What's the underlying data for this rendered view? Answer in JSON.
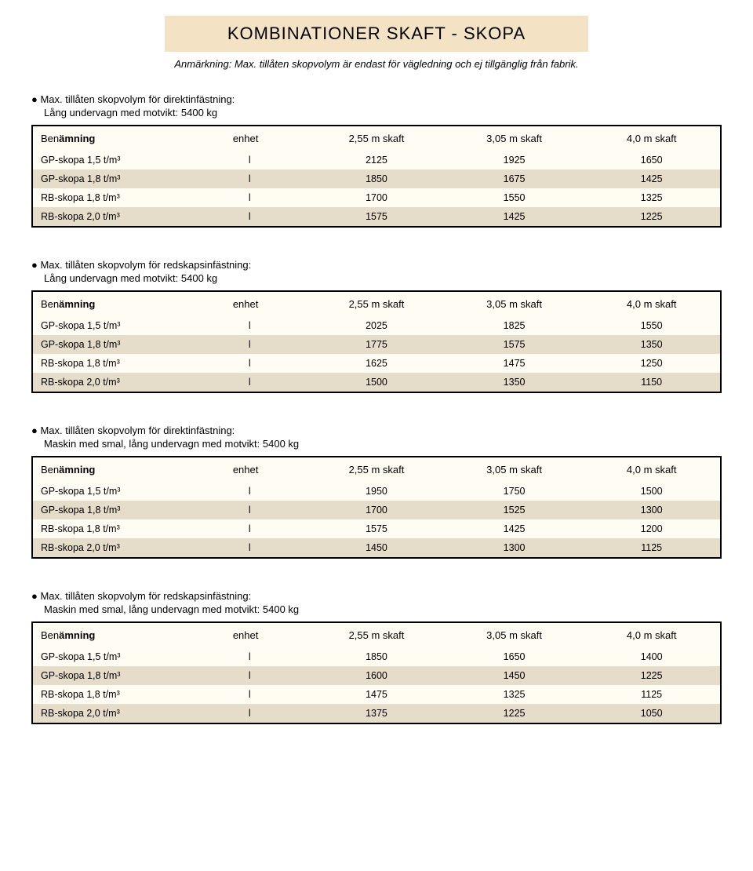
{
  "page_title": "KOMBINATIONER SKAFT - SKOPA",
  "page_subtitle": "Anmärkning: Max. tillåten skopvolym är endast för vägledning och ej tillgänglig från fabrik.",
  "header_labels": {
    "benamning_prefix": "Ben",
    "benamning_bold": "ämning",
    "enhet": "enhet",
    "col1": "2,55 m skaft",
    "col2": "3,05 m skaft",
    "col3": "4,0 m skaft"
  },
  "row_labels": {
    "gp15": "GP-skopa 1,5 t/m³",
    "gp18": "GP-skopa 1,8 t/m³",
    "rb18": "RB-skopa 1,8 t/m³",
    "rb20": "RB-skopa 2,0 t/m³",
    "unit": "l"
  },
  "sections": [
    {
      "heading": "● Max. tillåten skopvolym för direktinfästning:",
      "sub": "Lång undervagn med motvikt: 5400 kg",
      "rows": [
        [
          "2125",
          "1925",
          "1650"
        ],
        [
          "1850",
          "1675",
          "1425"
        ],
        [
          "1700",
          "1550",
          "1325"
        ],
        [
          "1575",
          "1425",
          "1225"
        ]
      ]
    },
    {
      "heading": "● Max. tillåten skopvolym för redskapsinfästning:",
      "sub": "Lång undervagn med motvikt: 5400 kg",
      "rows": [
        [
          "2025",
          "1825",
          "1550"
        ],
        [
          "1775",
          "1575",
          "1350"
        ],
        [
          "1625",
          "1475",
          "1250"
        ],
        [
          "1500",
          "1350",
          "1150"
        ]
      ]
    },
    {
      "heading": "● Max. tillåten skopvolym för direktinfästning:",
      "sub": "Maskin med smal, lång undervagn med motvikt: 5400 kg",
      "rows": [
        [
          "1950",
          "1750",
          "1500"
        ],
        [
          "1700",
          "1525",
          "1300"
        ],
        [
          "1575",
          "1425",
          "1200"
        ],
        [
          "1450",
          "1300",
          "1125"
        ]
      ]
    },
    {
      "heading": "● Max. tillåten skopvolym för redskapsinfästning:",
      "sub": "Maskin med smal, lång undervagn med motvikt: 5400 kg",
      "rows": [
        [
          "1850",
          "1650",
          "1400"
        ],
        [
          "1600",
          "1450",
          "1225"
        ],
        [
          "1475",
          "1325",
          "1125"
        ],
        [
          "1375",
          "1225",
          "1050"
        ]
      ]
    }
  ]
}
